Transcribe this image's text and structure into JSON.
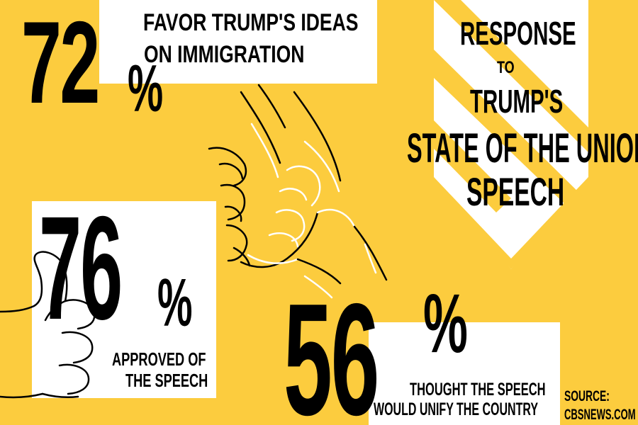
{
  "colors": {
    "background": "#fccc3e",
    "panel": "#ffffff",
    "text": "#000000"
  },
  "title": {
    "line1": "RESPONSE",
    "line2": "TO",
    "line3": "TRUMP'S",
    "line4": "STATE OF THE UNION",
    "line5": "SPEECH"
  },
  "stats": [
    {
      "value": "72",
      "symbol": "%",
      "caption_line1": "FAVOR TRUMP'S IDEAS",
      "caption_line2": "ON IMMIGRATION"
    },
    {
      "value": "76",
      "symbol": "%",
      "caption_line1": "APPROVED OF",
      "caption_line2": "THE SPEECH"
    },
    {
      "value": "56",
      "symbol": "%",
      "caption_line1": "THOUGHT THE SPEECH",
      "caption_line2": "WOULD UNIFY THE COUNTRY"
    }
  ],
  "source": {
    "line1": "SOURCE:",
    "line2": "CBSNEWS.COM"
  },
  "icons": [
    "thumbs-up-icon",
    "handshake-icon"
  ]
}
